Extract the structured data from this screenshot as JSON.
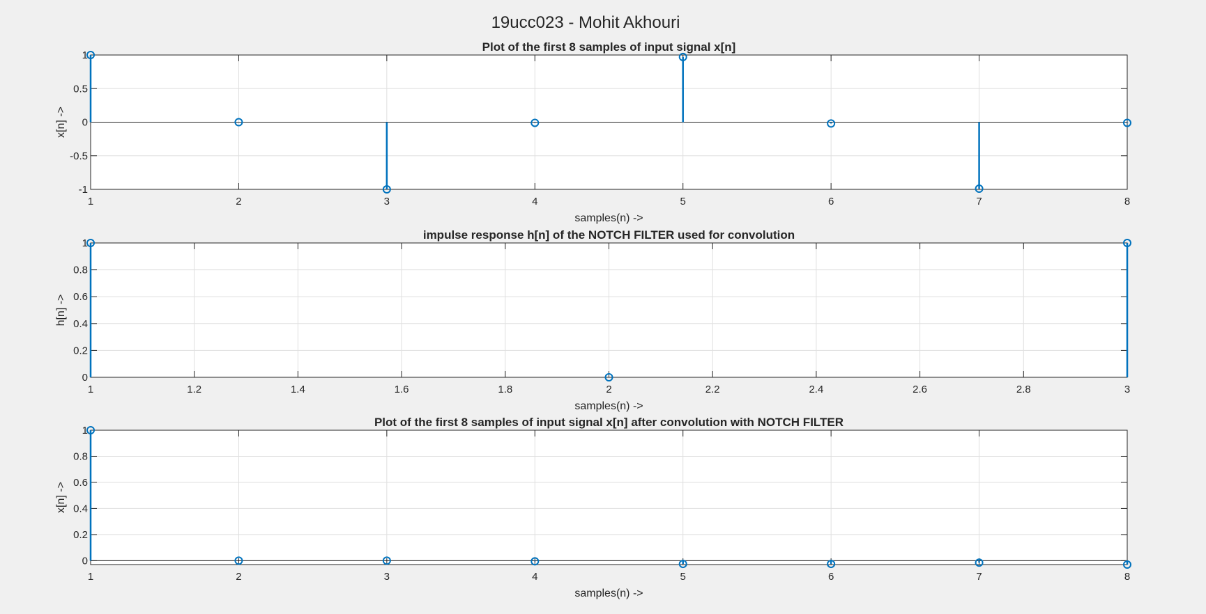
{
  "figure_title": "19ucc023 - Mohit Akhouri",
  "chart_data": [
    {
      "type": "stem",
      "title": "Plot of the first 8 samples of input signal x[n]",
      "xlabel": "samples(n) ->",
      "ylabel": "x[n] ->",
      "xlim": [
        1,
        8
      ],
      "ylim": [
        -1,
        1
      ],
      "xticks": [
        1,
        2,
        3,
        4,
        5,
        6,
        7,
        8
      ],
      "yticks": [
        -1,
        -0.5,
        0,
        0.5,
        1
      ],
      "grid": true,
      "color": "#0072bd",
      "x": [
        1,
        2,
        3,
        4,
        5,
        6,
        7,
        8
      ],
      "y": [
        1,
        0,
        -1,
        -0.01,
        0.97,
        -0.02,
        -0.99,
        -0.01
      ]
    },
    {
      "type": "stem",
      "title": "impulse response h[n] of the NOTCH FILTER used for convolution",
      "xlabel": "samples(n) ->",
      "ylabel": "h[n] ->",
      "xlim": [
        1,
        3
      ],
      "ylim": [
        0,
        1
      ],
      "xticks": [
        1,
        1.2,
        1.4,
        1.6,
        1.8,
        2,
        2.2,
        2.4,
        2.6,
        2.8,
        3
      ],
      "yticks": [
        0,
        0.2,
        0.4,
        0.6,
        0.8,
        1
      ],
      "grid": true,
      "color": "#0072bd",
      "x": [
        1,
        2,
        3
      ],
      "y": [
        1,
        0,
        1
      ]
    },
    {
      "type": "stem",
      "title": "Plot of the first 8 samples of input signal x[n] after convolution with NOTCH FILTER",
      "xlabel": "samples(n) ->",
      "ylabel": "x[n] ->",
      "xlim": [
        1,
        8
      ],
      "ylim": [
        -0.03,
        1
      ],
      "xticks": [
        1,
        2,
        3,
        4,
        5,
        6,
        7,
        8
      ],
      "yticks": [
        0,
        0.2,
        0.4,
        0.6,
        0.8,
        1
      ],
      "grid": true,
      "color": "#0072bd",
      "x": [
        1,
        2,
        3,
        4,
        5,
        6,
        7,
        8
      ],
      "y": [
        1,
        0,
        0,
        -0.005,
        -0.025,
        -0.025,
        -0.015,
        -0.03
      ]
    }
  ]
}
